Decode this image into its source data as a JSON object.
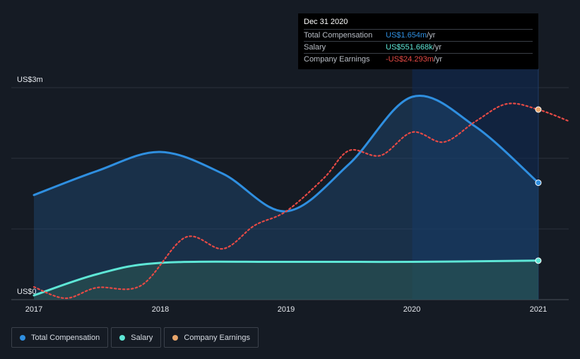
{
  "chart_data": {
    "type": "area",
    "x_labels": [
      "2017",
      "2018",
      "2019",
      "2020",
      "2021"
    ],
    "y_labels": [
      "US$3m",
      "US$0"
    ],
    "ylim": [
      0,
      3
    ],
    "grid": true,
    "series": [
      {
        "name": "Total Compensation",
        "color": "#2f8fe0",
        "style": "area-line",
        "points": [
          [
            2017.0,
            1.48
          ],
          [
            2017.5,
            1.82
          ],
          [
            2018.0,
            2.09
          ],
          [
            2018.5,
            1.78
          ],
          [
            2019.0,
            1.25
          ],
          [
            2019.5,
            1.92
          ],
          [
            2020.0,
            2.87
          ],
          [
            2020.5,
            2.45
          ],
          [
            2021.0,
            1.654
          ]
        ]
      },
      {
        "name": "Salary",
        "color": "#5ee6d6",
        "style": "area-line",
        "points": [
          [
            2017.0,
            0.06
          ],
          [
            2017.5,
            0.36
          ],
          [
            2018.0,
            0.52
          ],
          [
            2019.0,
            0.535
          ],
          [
            2020.0,
            0.535
          ],
          [
            2021.0,
            0.5517
          ]
        ]
      },
      {
        "name": "Company Earnings",
        "color": "#e64a45",
        "marker_color": "#e8a56b",
        "style": "dotted",
        "points": [
          [
            2017.0,
            0.18
          ],
          [
            2017.25,
            0.02
          ],
          [
            2017.5,
            0.17
          ],
          [
            2017.85,
            0.2
          ],
          [
            2018.2,
            0.88
          ],
          [
            2018.5,
            0.72
          ],
          [
            2018.75,
            1.05
          ],
          [
            2019.0,
            1.25
          ],
          [
            2019.3,
            1.72
          ],
          [
            2019.5,
            2.11
          ],
          [
            2019.75,
            2.04
          ],
          [
            2020.0,
            2.37
          ],
          [
            2020.25,
            2.23
          ],
          [
            2020.5,
            2.52
          ],
          [
            2020.75,
            2.77
          ],
          [
            2021.0,
            2.69
          ],
          [
            2021.25,
            2.52
          ]
        ]
      }
    ],
    "highlight_x": 2021.0
  },
  "tooltip": {
    "date": "Dec 31 2020",
    "rows": [
      {
        "label": "Total Compensation",
        "value": "US$1.654m",
        "unit": " /yr",
        "color": "#2f8fe0"
      },
      {
        "label": "Salary",
        "value": "US$551.668k",
        "unit": " /yr",
        "color": "#5ee6d6"
      },
      {
        "label": "Company Earnings",
        "value": "-US$24.293m",
        "unit": " /yr",
        "color": "#e64a45"
      }
    ]
  },
  "legend": [
    {
      "label": "Total Compensation",
      "color": "#2f8fe0"
    },
    {
      "label": "Salary",
      "color": "#5ee6d6"
    },
    {
      "label": "Company Earnings",
      "color": "#e8a56b"
    }
  ]
}
